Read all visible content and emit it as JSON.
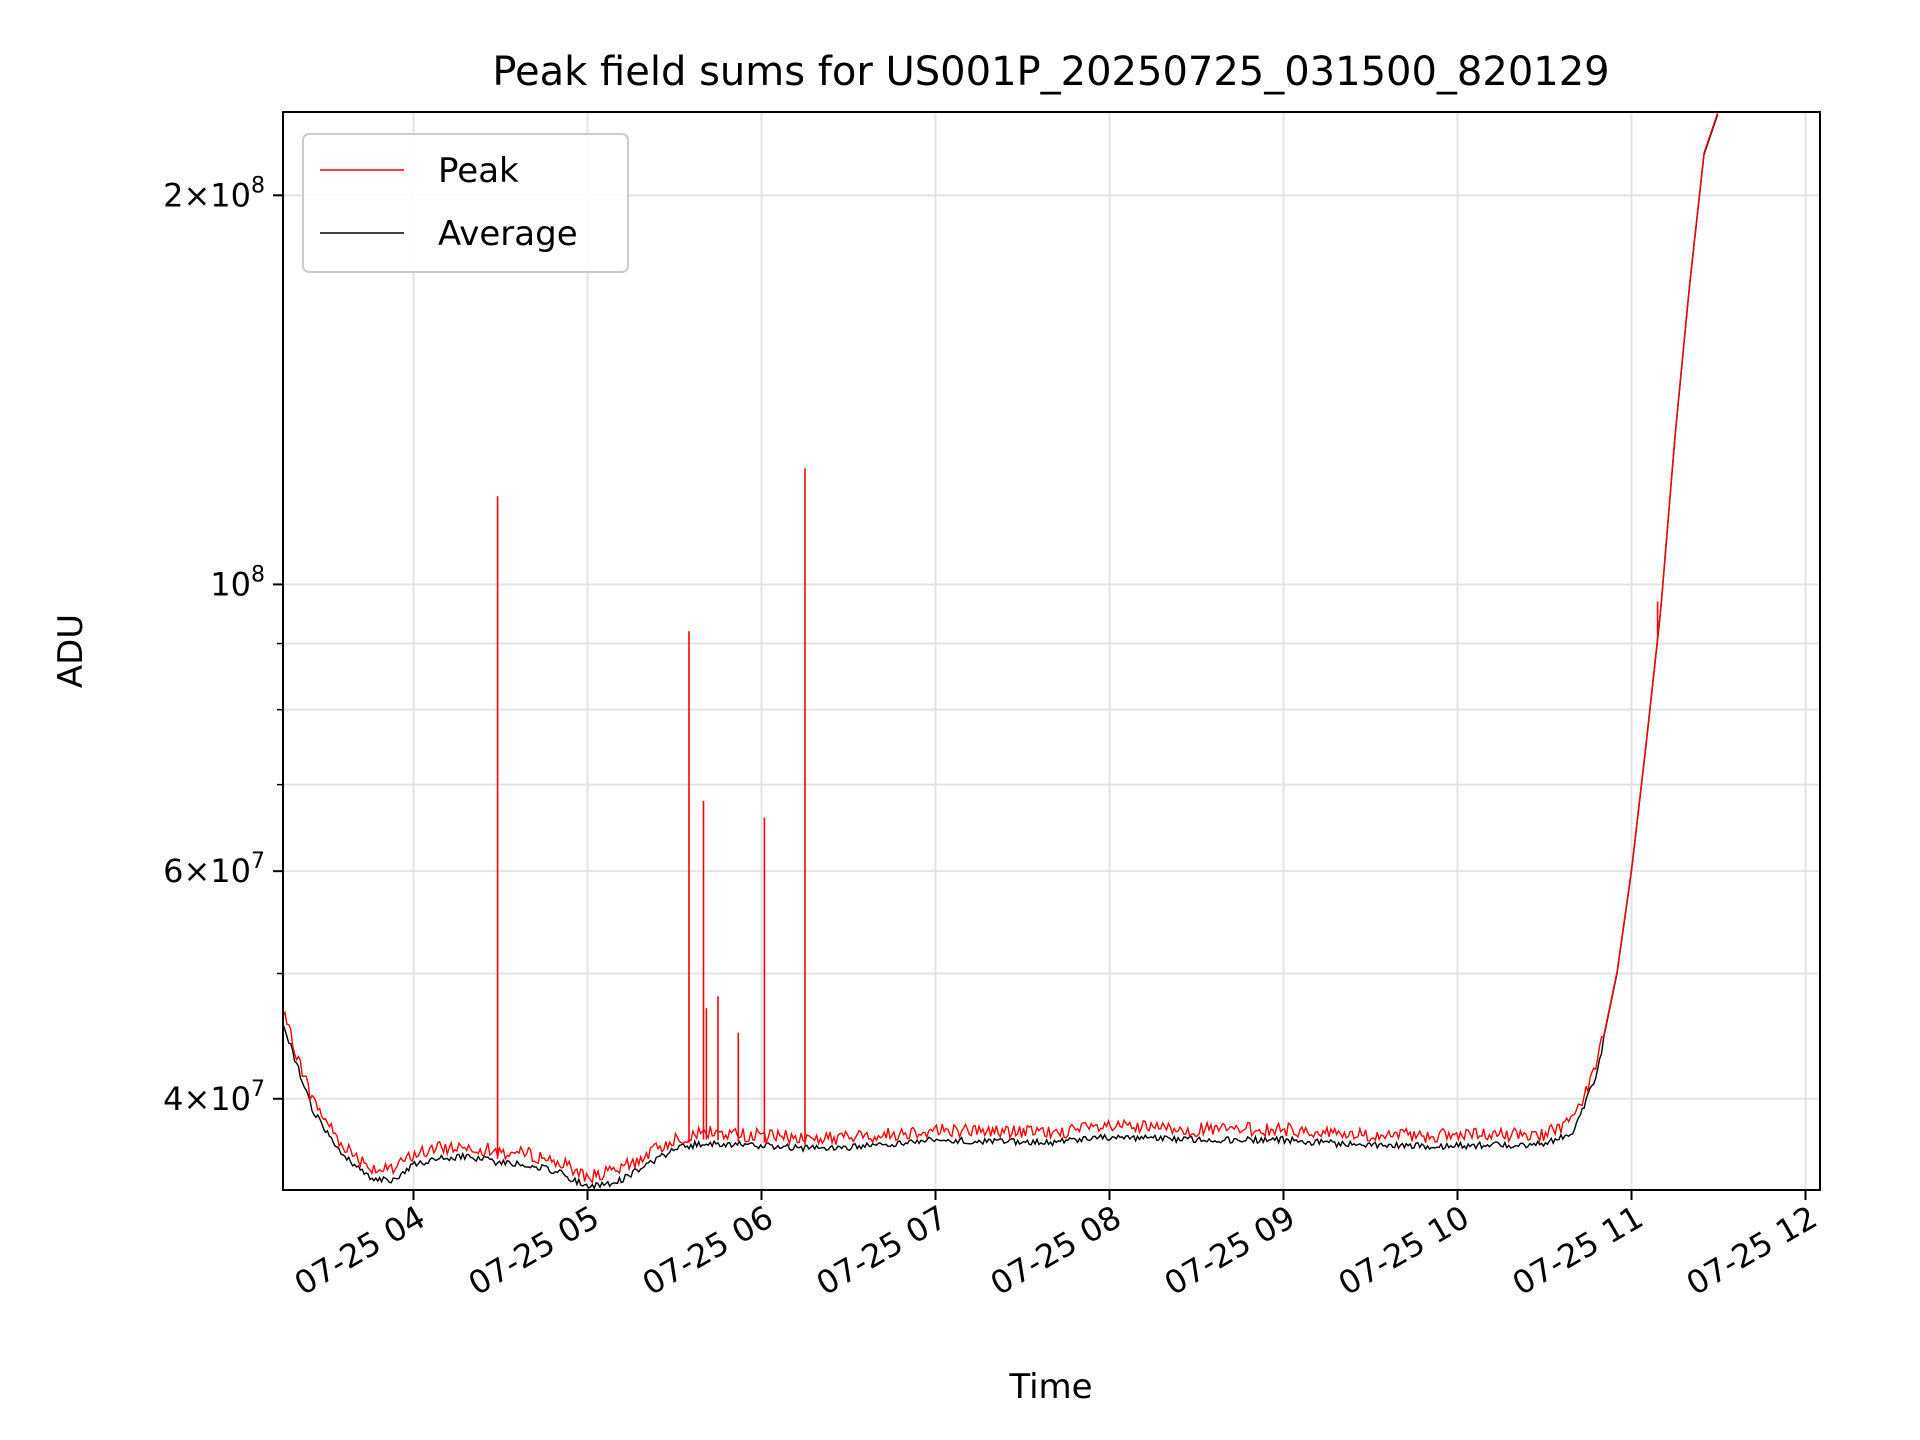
{
  "chart_data": {
    "type": "line",
    "title": "Peak field sums for US001P_20250725_031500_820129",
    "xlabel": "Time",
    "ylabel": "ADU",
    "y_scale": "log",
    "ylim": [
      34000000,
      232000000
    ],
    "xlim": [
      "2025-07-25 03:15",
      "2025-07-25 12:05"
    ],
    "grid": true,
    "legend_position": "top-left",
    "x_ticks": [
      {
        "t": "2025-07-25 04:00",
        "label": "07-25 04"
      },
      {
        "t": "2025-07-25 05:00",
        "label": "07-25 05"
      },
      {
        "t": "2025-07-25 06:00",
        "label": "07-25 06"
      },
      {
        "t": "2025-07-25 07:00",
        "label": "07-25 07"
      },
      {
        "t": "2025-07-25 08:00",
        "label": "07-25 08"
      },
      {
        "t": "2025-07-25 09:00",
        "label": "07-25 09"
      },
      {
        "t": "2025-07-25 10:00",
        "label": "07-25 10"
      },
      {
        "t": "2025-07-25 11:00",
        "label": "07-25 11"
      },
      {
        "t": "2025-07-25 12:00",
        "label": "07-25 12"
      }
    ],
    "y_ticks": [
      {
        "v": 40000000,
        "mantissa": "4",
        "exp": "7"
      },
      {
        "v": 60000000,
        "mantissa": "6",
        "exp": "7"
      },
      {
        "v": 100000000,
        "mantissa": "",
        "exp": "8"
      },
      {
        "v": 200000000,
        "mantissa": "2",
        "exp": "8"
      }
    ],
    "y_minor_ticks": [
      50000000,
      70000000,
      80000000,
      90000000
    ],
    "series": [
      {
        "name": "Average",
        "color": "#000000",
        "points": [
          [
            "2025-07-25 03:15",
            46000000
          ],
          [
            "2025-07-25 03:25",
            39500000
          ],
          [
            "2025-07-25 03:35",
            36500000
          ],
          [
            "2025-07-25 03:45",
            35000000
          ],
          [
            "2025-07-25 03:52",
            34700000
          ],
          [
            "2025-07-25 04:00",
            35800000
          ],
          [
            "2025-07-25 04:10",
            36200000
          ],
          [
            "2025-07-25 04:20",
            36300000
          ],
          [
            "2025-07-25 04:30",
            35900000
          ],
          [
            "2025-07-25 04:40",
            35800000
          ],
          [
            "2025-07-25 04:50",
            35300000
          ],
          [
            "2025-07-25 05:00",
            34400000
          ],
          [
            "2025-07-25 05:10",
            34700000
          ],
          [
            "2025-07-25 05:20",
            35700000
          ],
          [
            "2025-07-25 05:30",
            36800000
          ],
          [
            "2025-07-25 05:40",
            37200000
          ],
          [
            "2025-07-25 06:00",
            37000000
          ],
          [
            "2025-07-25 06:20",
            36800000
          ],
          [
            "2025-07-25 06:40",
            37000000
          ],
          [
            "2025-07-25 07:00",
            37400000
          ],
          [
            "2025-07-25 07:20",
            37300000
          ],
          [
            "2025-07-25 07:40",
            37200000
          ],
          [
            "2025-07-25 08:00",
            37600000
          ],
          [
            "2025-07-25 08:30",
            37400000
          ],
          [
            "2025-07-25 09:00",
            37400000
          ],
          [
            "2025-07-25 09:30",
            37000000
          ],
          [
            "2025-07-25 10:00",
            37000000
          ],
          [
            "2025-07-25 10:30",
            37100000
          ],
          [
            "2025-07-25 10:40",
            38000000
          ],
          [
            "2025-07-25 10:48",
            42000000
          ],
          [
            "2025-07-25 10:55",
            50000000
          ],
          [
            "2025-07-25 11:00",
            60000000
          ],
          [
            "2025-07-25 11:05",
            75000000
          ],
          [
            "2025-07-25 11:10",
            95000000
          ],
          [
            "2025-07-25 11:15",
            130000000
          ],
          [
            "2025-07-25 11:20",
            170000000
          ],
          [
            "2025-07-25 11:25",
            215000000
          ],
          [
            "2025-07-25 11:30",
            232000000
          ]
        ]
      },
      {
        "name": "Peak",
        "color": "#ff0000",
        "base_offset": 1.025,
        "spikes": [
          [
            "2025-07-25 04:29",
            117000000
          ],
          [
            "2025-07-25 05:35",
            92000000
          ],
          [
            "2025-07-25 05:40",
            68000000
          ],
          [
            "2025-07-25 05:41",
            47000000
          ],
          [
            "2025-07-25 05:45",
            48000000
          ],
          [
            "2025-07-25 05:52",
            45000000
          ],
          [
            "2025-07-25 06:01",
            66000000
          ],
          [
            "2025-07-25 06:15",
            123000000
          ],
          [
            "2025-07-25 11:09",
            97000000
          ]
        ]
      }
    ]
  }
}
